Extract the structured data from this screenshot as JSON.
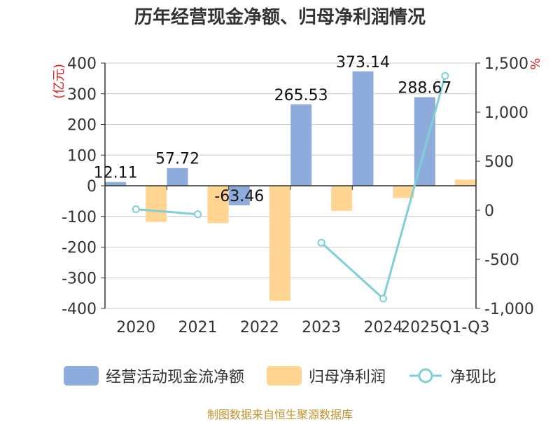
{
  "chart_data": {
    "type": "bar",
    "title": "历年经营现金净额、归母净利润情况",
    "categories": [
      "2020",
      "2021",
      "2022",
      "2023",
      "2024",
      "2025Q1-Q3"
    ],
    "series": [
      {
        "name": "经营活动现金流净额",
        "type": "bar",
        "axis": "left",
        "color": "#8eacdb",
        "values": [
          12.11,
          57.72,
          -63.46,
          265.53,
          373.14,
          288.67
        ],
        "labels": [
          "12.11",
          "57.72",
          "-63.46",
          "265.53",
          "373.14",
          "288.67"
        ]
      },
      {
        "name": "归母净利润",
        "type": "bar",
        "axis": "left",
        "color": "#ffd591",
        "values": [
          -118,
          -122,
          -375,
          -82,
          -40,
          20
        ]
      },
      {
        "name": "净现比",
        "type": "line",
        "axis": "right",
        "color": "#7fcfd6",
        "values": [
          10,
          -40,
          null,
          -330,
          -900,
          1370
        ]
      }
    ],
    "y_left": {
      "label": "(亿元)",
      "min": -400,
      "max": 400,
      "ticks": [
        400,
        300,
        200,
        100,
        0,
        -100,
        -200,
        -300,
        -400
      ],
      "tick_labels": [
        "400",
        "300",
        "200",
        "100",
        "0",
        "-100",
        "-200",
        "-300",
        "-400"
      ]
    },
    "y_right": {
      "label": "%",
      "min": -1000,
      "max": 1500,
      "ticks": [
        1500,
        1000,
        500,
        0,
        -500,
        -1000
      ],
      "tick_labels": [
        "1,500",
        "1,000",
        "500",
        "0",
        "-500",
        "-1,000"
      ]
    },
    "grid": true,
    "legend_position": "bottom"
  },
  "source_note": "制图数据来自恒生聚源数据库"
}
